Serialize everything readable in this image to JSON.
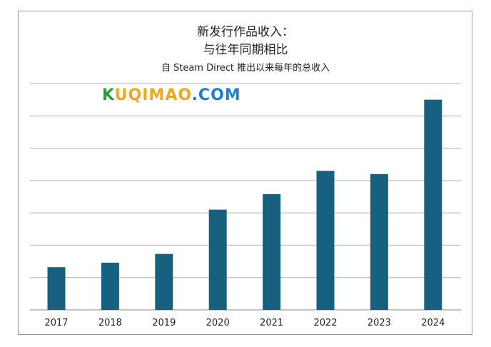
{
  "watermark": {
    "part1": "K",
    "part2": "UQIMAO",
    "part3": ".COM"
  },
  "chart_data": {
    "type": "bar",
    "title": "新发行作品收入：",
    "title_line2": "与往年同期相比",
    "subtitle": "自 Steam Direct 推出以来每年的总收入",
    "categories": [
      "2017",
      "2018",
      "2019",
      "2020",
      "2021",
      "2022",
      "2023",
      "2024"
    ],
    "values": [
      13.2,
      14.6,
      17.3,
      31.0,
      35.8,
      43.0,
      42.0,
      65.0
    ],
    "ylim": [
      0,
      70
    ],
    "grid": true,
    "bar_color": "#17607f",
    "grid_color": "#b0b0b0"
  }
}
